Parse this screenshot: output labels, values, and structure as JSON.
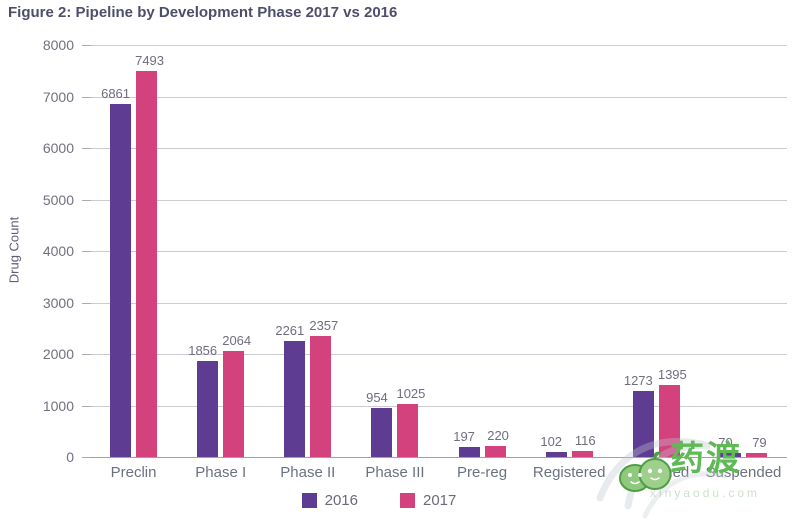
{
  "chart_data": {
    "type": "bar",
    "title": "Figure 2: Pipeline by Development Phase 2017 vs 2016",
    "categories": [
      "Preclin",
      "Phase I",
      "Phase II",
      "Phase III",
      "Pre-reg",
      "Registered",
      "Launched",
      "Suspended"
    ],
    "series": [
      {
        "name": "2016",
        "color": "#5D3C92",
        "values": [
          6861,
          1856,
          2261,
          954,
          197,
          102,
          1273,
          70
        ]
      },
      {
        "name": "2017",
        "color": "#D4427E",
        "values": [
          7493,
          2064,
          2357,
          1025,
          220,
          116,
          1395,
          79
        ]
      }
    ],
    "ylabel": "Drug Count",
    "xlabel": "",
    "ylim": [
      0,
      8000
    ],
    "yticks": [
      0,
      1000,
      2000,
      3000,
      4000,
      5000,
      6000,
      7000,
      8000
    ],
    "grid": true,
    "legend_position": "bottom",
    "data_labels": true
  },
  "colors": {
    "title_text": "#4E4E6C",
    "axis_text": "#71717F",
    "category_text": "#6A7280",
    "gridline": "#CBCBD1",
    "baseline": "#9FA0A8",
    "watermark_green": "#5FBA55"
  },
  "watermark": {
    "brand_text": "药渡",
    "sub_text": "xinyaodu.com"
  }
}
